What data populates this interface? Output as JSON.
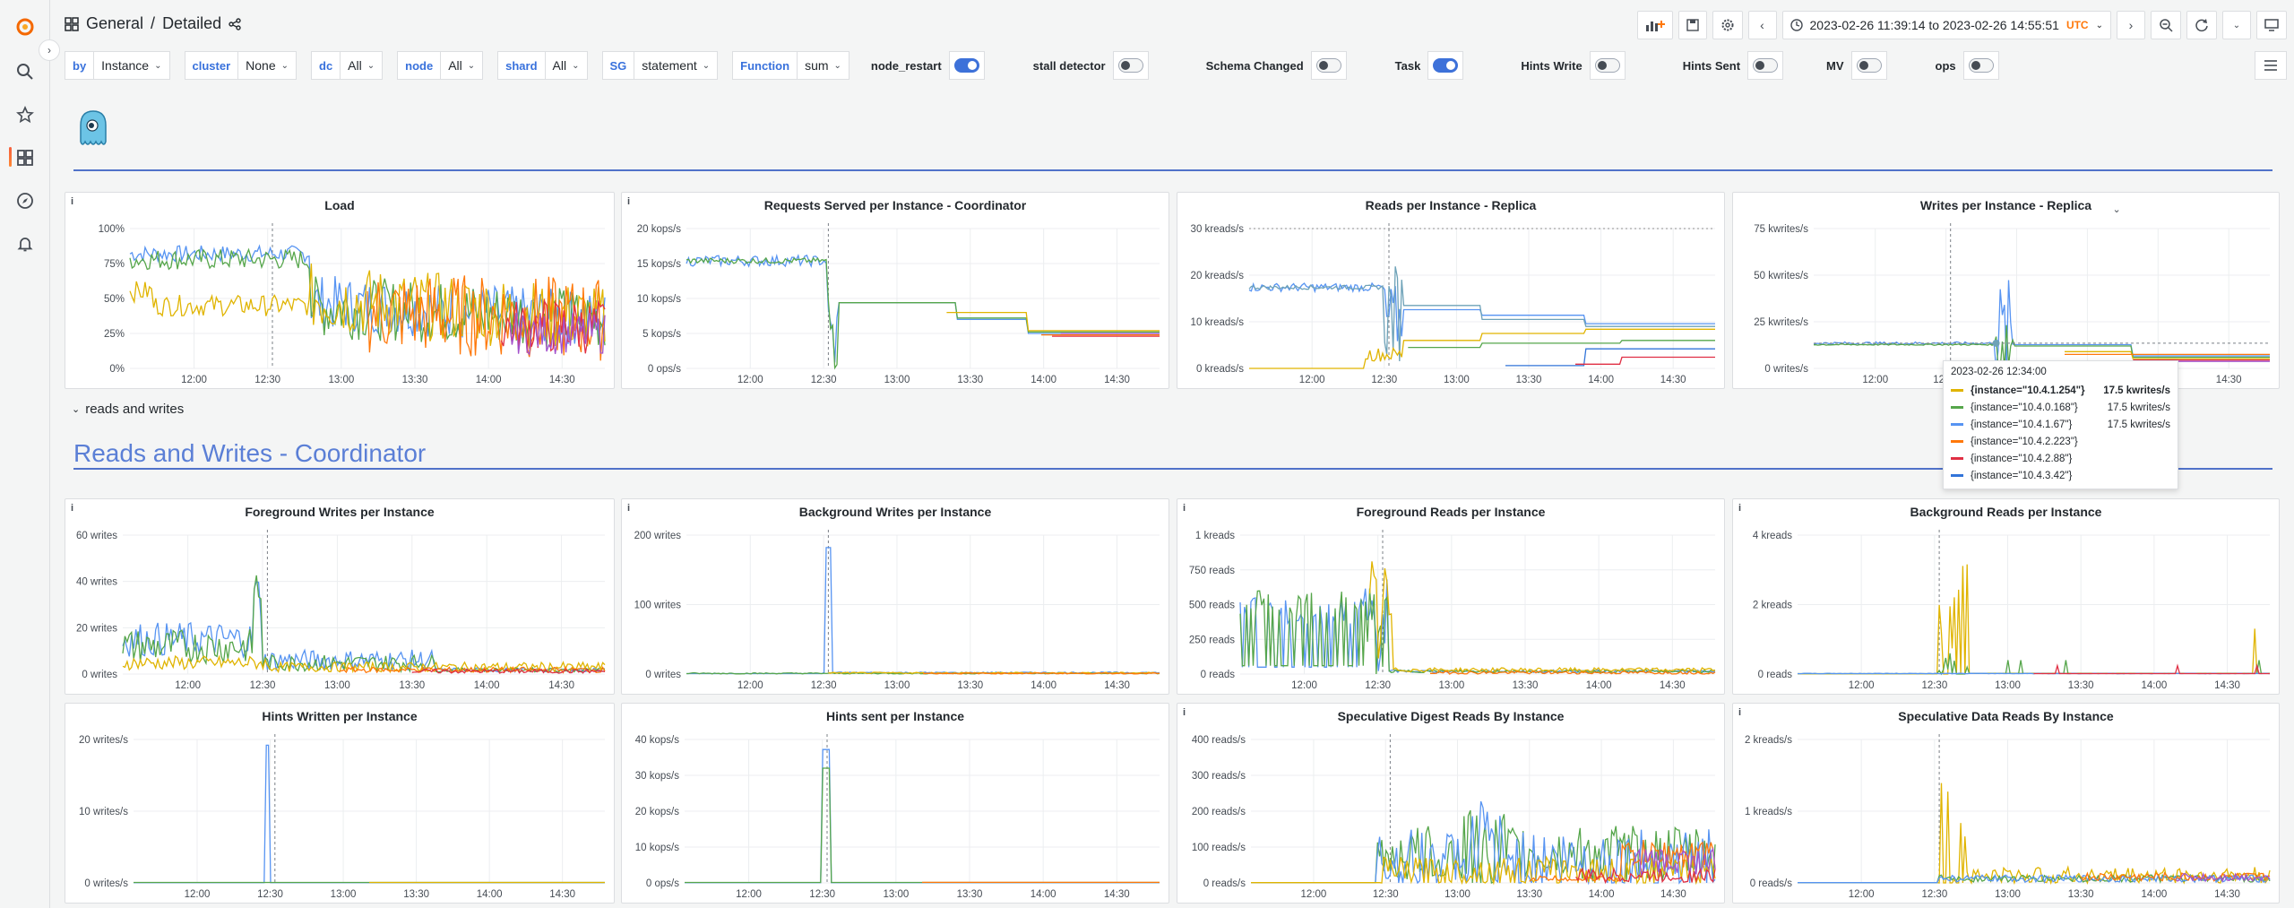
{
  "breadcrumb": {
    "folder": "General",
    "separator": "/",
    "dashboard": "Detailed"
  },
  "time_range": {
    "label": "2023-02-26 11:39:14 to 2023-02-26 14:55:51",
    "tz": "UTC"
  },
  "variables": [
    {
      "label": "by",
      "value": "Instance"
    },
    {
      "label": "cluster",
      "value": "None"
    },
    {
      "label": "dc",
      "value": "All"
    },
    {
      "label": "node",
      "value": "All"
    },
    {
      "label": "shard",
      "value": "All"
    },
    {
      "label": "SG",
      "value": "statement"
    },
    {
      "label": "Function",
      "value": "sum"
    }
  ],
  "toggles": [
    {
      "label": "node_restart",
      "on": true
    },
    {
      "label": "stall detector",
      "on": false
    },
    {
      "label": "Schema Changed",
      "on": false
    },
    {
      "label": "Task",
      "on": true
    },
    {
      "label": "Hints Write",
      "on": false
    },
    {
      "label": "Hints Sent",
      "on": false
    },
    {
      "label": "MV",
      "on": false
    },
    {
      "label": "ops",
      "on": false
    }
  ],
  "rows": {
    "collapsed_row": "reads and writes",
    "section_title": "Reads and Writes - Coordinator"
  },
  "colors": {
    "yellow": "#e0b400",
    "green": "#56a64b",
    "blue": "#5794f2",
    "orange": "#ff780a",
    "red": "#e02f44",
    "purple": "#a352cc",
    "darkblue": "#3274d9",
    "teal": "#6ea2b8"
  },
  "x_ticks": [
    "12:00",
    "12:30",
    "13:00",
    "13:30",
    "14:00",
    "14:30"
  ],
  "panels": [
    {
      "id": "load",
      "title": "Load",
      "y_ticks": [
        "100%",
        "75%",
        "50%",
        "25%",
        "0%"
      ],
      "info": true
    },
    {
      "id": "req-coord",
      "title": "Requests Served per Instance - Coordinator",
      "y_ticks": [
        "20 kops/s",
        "15 kops/s",
        "10 kops/s",
        "5 kops/s",
        "0 ops/s"
      ],
      "info": true
    },
    {
      "id": "reads-replica",
      "title": "Reads per Instance - Replica",
      "y_ticks": [
        "30 kreads/s",
        "20 kreads/s",
        "10 kreads/s",
        "0 kreads/s"
      ],
      "info": false
    },
    {
      "id": "writes-replica",
      "title": "Writes per Instance - Replica",
      "y_ticks": [
        "75 kwrites/s",
        "50 kwrites/s",
        "25 kwrites/s",
        "0 writes/s"
      ],
      "info": false
    },
    {
      "id": "fg-writes",
      "title": "Foreground Writes per Instance",
      "y_ticks": [
        "60 writes",
        "40 writes",
        "20 writes",
        "0 writes"
      ],
      "info": true
    },
    {
      "id": "bg-writes",
      "title": "Background Writes per Instance",
      "y_ticks": [
        "200 writes",
        "100 writes",
        "0 writes"
      ],
      "info": true
    },
    {
      "id": "fg-reads",
      "title": "Foreground Reads per Instance",
      "y_ticks": [
        "1 kreads",
        "750 reads",
        "500 reads",
        "250 reads",
        "0 reads"
      ],
      "info": true
    },
    {
      "id": "bg-reads",
      "title": "Background Reads per Instance",
      "y_ticks": [
        "4 kreads",
        "2 kreads",
        "0 reads"
      ],
      "info": true
    },
    {
      "id": "hints-written",
      "title": "Hints Written per Instance",
      "y_ticks": [
        "20 writes/s",
        "10 writes/s",
        "0 writes/s"
      ],
      "info": false
    },
    {
      "id": "hints-sent",
      "title": "Hints sent per Instance",
      "y_ticks": [
        "40 kops/s",
        "30 kops/s",
        "20 kops/s",
        "10 kops/s",
        "0 ops/s"
      ],
      "info": false
    },
    {
      "id": "spec-digest",
      "title": "Speculative Digest Reads By Instance",
      "y_ticks": [
        "400 reads/s",
        "300 reads/s",
        "200 reads/s",
        "100 reads/s",
        "0 reads/s"
      ],
      "info": true
    },
    {
      "id": "spec-data",
      "title": "Speculative Data Reads By Instance",
      "y_ticks": [
        "2 kreads/s",
        "1 kreads/s",
        "0 reads/s"
      ],
      "info": true
    }
  ],
  "tooltip": {
    "time": "2023-02-26 12:34:00",
    "rows": [
      {
        "name": "{instance=\"10.4.1.254\"}",
        "value": "17.5 kwrites/s",
        "color": "#e0b400",
        "highlight": true
      },
      {
        "name": "{instance=\"10.4.0.168\"}",
        "value": "17.5 kwrites/s",
        "color": "#56a64b",
        "highlight": false
      },
      {
        "name": "{instance=\"10.4.1.67\"}",
        "value": "17.5 kwrites/s",
        "color": "#5794f2",
        "highlight": false
      },
      {
        "name": "{instance=\"10.4.2.223\"}",
        "value": "",
        "color": "#ff780a",
        "highlight": false
      },
      {
        "name": "{instance=\"10.4.2.88\"}",
        "value": "",
        "color": "#e02f44",
        "highlight": false
      },
      {
        "name": "{instance=\"10.4.3.42\"}",
        "value": "",
        "color": "#3274d9",
        "highlight": false
      }
    ]
  }
}
